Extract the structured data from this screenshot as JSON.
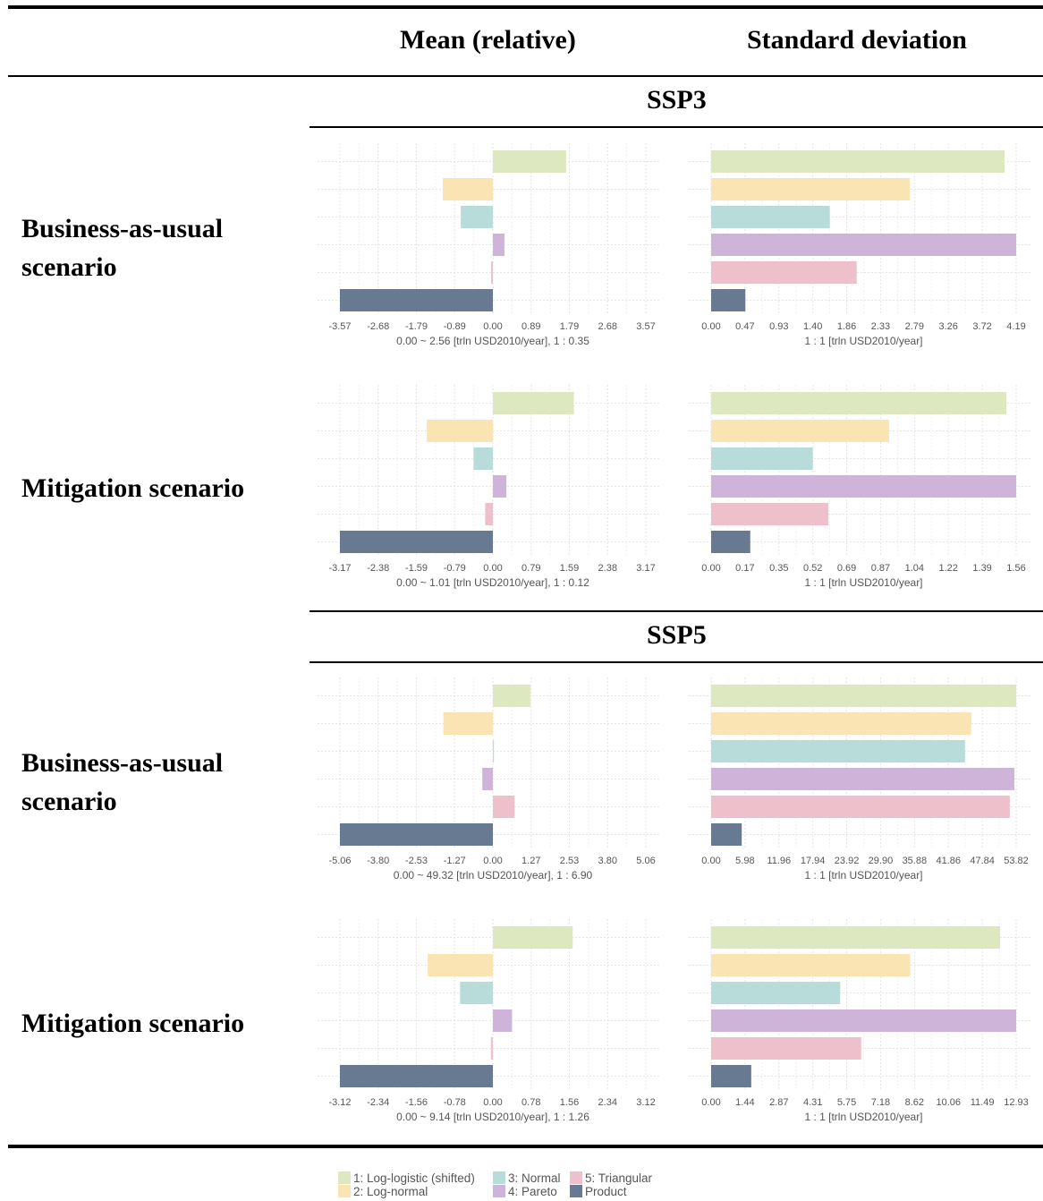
{
  "header": {
    "mean_label": "Mean (relative)",
    "sd_label": "Standard deviation"
  },
  "sections": [
    {
      "title": "SSP3",
      "rows": [
        {
          "label_line1": "Business-as-usual",
          "label_line2": "scenario"
        },
        {
          "label_line1": "Mitigation scenario",
          "label_line2": ""
        }
      ]
    },
    {
      "title": "SSP5",
      "rows": [
        {
          "label_line1": "Business-as-usual",
          "label_line2": "scenario"
        },
        {
          "label_line1": "Mitigation scenario",
          "label_line2": ""
        }
      ]
    }
  ],
  "legend": {
    "items": [
      {
        "label": "1: Log-logistic (shifted)",
        "color": "#dde8c0"
      },
      {
        "label": "2: Log-normal",
        "color": "#fbe4b4"
      },
      {
        "label": "3: Normal",
        "color": "#b8dcda"
      },
      {
        "label": "4: Pareto",
        "color": "#cdb4d8"
      },
      {
        "label": "5: Triangular",
        "color": "#eec0cb"
      },
      {
        "label": "Product",
        "color": "#687a92"
      }
    ]
  },
  "chart_data": [
    {
      "type": "bar",
      "orientation": "horizontal",
      "panel": "SSP3 business-as-usual mean (relative)",
      "categories": [
        "1",
        "2",
        "3",
        "4",
        "5",
        "Product"
      ],
      "values": [
        1.71,
        -1.17,
        -0.75,
        0.27,
        -0.04,
        -3.57
      ],
      "xlim": [
        -3.57,
        3.57
      ],
      "xticks": [
        "-3.57",
        "-2.68",
        "-1.79",
        "-0.89",
        "0.00",
        "0.89",
        "1.79",
        "2.68",
        "3.57"
      ],
      "xlabel": "0.00 ~ 2.56 [trln USD2010/year], 1 : 0.35"
    },
    {
      "type": "bar",
      "orientation": "horizontal",
      "panel": "SSP3 business-as-usual standard deviation",
      "categories": [
        "1",
        "2",
        "3",
        "4",
        "5",
        "Product"
      ],
      "values": [
        4.03,
        2.73,
        1.63,
        4.19,
        2.0,
        0.47
      ],
      "xlim": [
        0,
        4.19
      ],
      "xticks": [
        "0.00",
        "0.47",
        "0.93",
        "1.40",
        "1.86",
        "2.33",
        "2.79",
        "3.26",
        "3.72",
        "4.19"
      ],
      "xlabel": "1 : 1 [trln USD2010/year]"
    },
    {
      "type": "bar",
      "orientation": "horizontal",
      "panel": "SSP3 mitigation mean (relative)",
      "categories": [
        "1",
        "2",
        "3",
        "4",
        "5",
        "Product"
      ],
      "values": [
        1.68,
        -1.37,
        -0.4,
        0.28,
        -0.16,
        -3.17
      ],
      "xlim": [
        -3.17,
        3.17
      ],
      "xticks": [
        "-3.17",
        "-2.38",
        "-1.59",
        "-0.79",
        "0.00",
        "0.79",
        "1.59",
        "2.38",
        "3.17"
      ],
      "xlabel": "0.00 ~ 1.01 [trln USD2010/year], 1 : 0.12"
    },
    {
      "type": "bar",
      "orientation": "horizontal",
      "panel": "SSP3 mitigation standard deviation",
      "categories": [
        "1",
        "2",
        "3",
        "4",
        "5",
        "Product"
      ],
      "values": [
        1.51,
        0.91,
        0.52,
        1.56,
        0.6,
        0.2
      ],
      "xlim": [
        0,
        1.56
      ],
      "xticks": [
        "0.00",
        "0.17",
        "0.35",
        "0.52",
        "0.69",
        "0.87",
        "1.04",
        "1.22",
        "1.39",
        "1.56"
      ],
      "xlabel": "1 : 1 [trln USD2010/year]"
    },
    {
      "type": "bar",
      "orientation": "horizontal",
      "panel": "SSP5 business-as-usual mean (relative)",
      "categories": [
        "1",
        "2",
        "3",
        "4",
        "5",
        "Product"
      ],
      "values": [
        1.24,
        -1.64,
        0.03,
        -0.35,
        0.72,
        -5.06
      ],
      "xlim": [
        -5.06,
        5.06
      ],
      "xticks": [
        "-5.06",
        "-3.80",
        "-2.53",
        "-1.27",
        "0.00",
        "1.27",
        "2.53",
        "3.80",
        "5.06"
      ],
      "xlabel": "0.00 ~ 49.32 [trln USD2010/year], 1 : 6.90"
    },
    {
      "type": "bar",
      "orientation": "horizontal",
      "panel": "SSP5 business-as-usual standard deviation",
      "categories": [
        "1",
        "2",
        "3",
        "4",
        "5",
        "Product"
      ],
      "values": [
        53.82,
        45.9,
        44.8,
        53.5,
        52.7,
        5.4
      ],
      "xlim": [
        0,
        53.82
      ],
      "xticks": [
        "0.00",
        "5.98",
        "11.96",
        "17.94",
        "23.92",
        "29.90",
        "35.88",
        "41.86",
        "47.84",
        "53.82"
      ],
      "xlabel": "1 : 1 [trln USD2010/year]"
    },
    {
      "type": "bar",
      "orientation": "horizontal",
      "panel": "SSP5 mitigation mean (relative)",
      "categories": [
        "1",
        "2",
        "3",
        "4",
        "5",
        "Product"
      ],
      "values": [
        1.63,
        -1.33,
        -0.67,
        0.39,
        -0.04,
        -3.12
      ],
      "xlim": [
        -3.12,
        3.12
      ],
      "xticks": [
        "-3.12",
        "-2.34",
        "-1.56",
        "-0.78",
        "0.00",
        "0.78",
        "1.56",
        "2.34",
        "3.12"
      ],
      "xlabel": "0.00 ~ 9.14 [trln USD2010/year], 1 : 1.26"
    },
    {
      "type": "bar",
      "orientation": "horizontal",
      "panel": "SSP5 mitigation standard deviation",
      "categories": [
        "1",
        "2",
        "3",
        "4",
        "5",
        "Product"
      ],
      "values": [
        12.25,
        8.44,
        5.47,
        12.93,
        6.36,
        1.7
      ],
      "xlim": [
        0,
        12.93
      ],
      "xticks": [
        "0.00",
        "1.44",
        "2.87",
        "4.31",
        "5.75",
        "7.18",
        "8.62",
        "10.06",
        "11.49",
        "12.93"
      ],
      "xlabel": "1 : 1 [trln USD2010/year]"
    }
  ]
}
